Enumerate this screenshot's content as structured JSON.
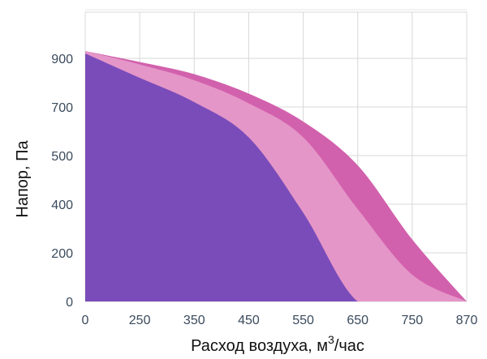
{
  "chart_data": {
    "type": "area",
    "x_tick_labels": [
      "0",
      "250",
      "350",
      "450",
      "550",
      "650",
      "750",
      "870"
    ],
    "y_tick_labels": [
      "0",
      "200",
      "400",
      "500",
      "700",
      "900"
    ],
    "xlabel_prefix": "Расход воздуха, м",
    "xlabel_sup": "3",
    "xlabel_suffix": "/час",
    "ylabel": "Напор, Па",
    "grid": true,
    "series": [
      {
        "color": "#d261ad",
        "x": [
          "0",
          "250",
          "350",
          "450",
          "550",
          "650",
          "750",
          "870"
        ],
        "values": [
          930,
          885,
          835,
          755,
          640,
          480,
          255,
          0
        ]
      },
      {
        "color": "#e596c8",
        "x": [
          "0",
          "250",
          "350",
          "450",
          "550",
          "650",
          "750",
          "870"
        ],
        "values": [
          930,
          875,
          810,
          715,
          575,
          380,
          110,
          0
        ]
      },
      {
        "color": "#7a4cba",
        "x": [
          "0",
          "250",
          "350",
          "450",
          "550",
          "650",
          "750",
          "870"
        ],
        "values": [
          920,
          820,
          720,
          575,
          365,
          0,
          0,
          0
        ]
      }
    ]
  }
}
